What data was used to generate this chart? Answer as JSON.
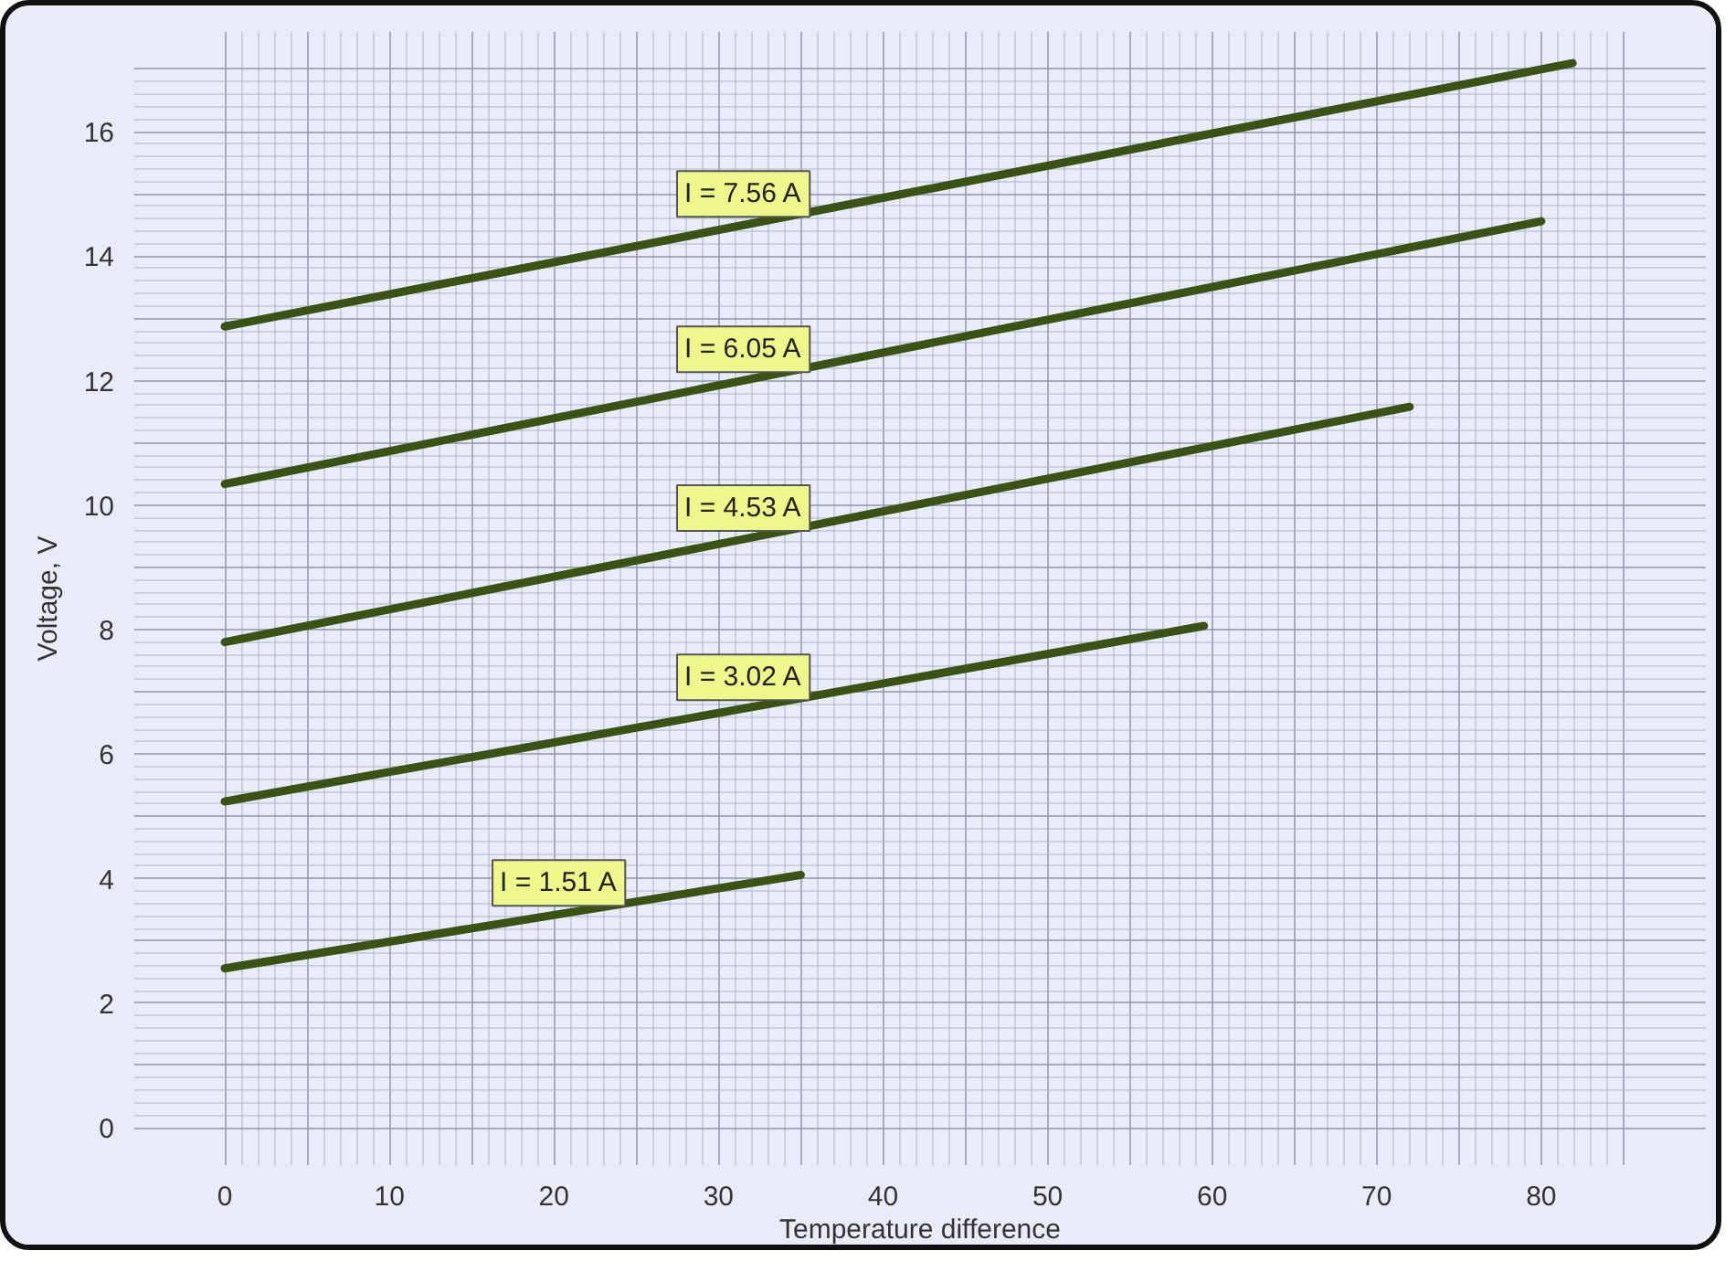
{
  "chart_data": {
    "type": "line",
    "xlabel": "Temperature difference",
    "ylabel": "Voltage, V",
    "xlim": [
      -5.5,
      90
    ],
    "ylim": [
      -0.6,
      17.6
    ],
    "xticks": [
      0,
      {
        "value": 5,
        "label": null
      },
      10,
      {
        "value": 15,
        "label": null
      },
      20,
      {
        "value": 25,
        "label": null
      },
      30,
      {
        "value": 35,
        "label": null
      },
      40,
      {
        "value": 45,
        "label": null
      },
      50,
      {
        "value": 55,
        "label": null
      },
      60,
      {
        "value": 65,
        "label": null
      },
      70,
      {
        "value": 75,
        "label": null
      },
      80,
      {
        "value": 85,
        "label": null
      }
    ],
    "yticks": [
      0,
      {
        "value": 1,
        "label": null
      },
      2,
      {
        "value": 3,
        "label": null
      },
      4,
      {
        "value": 5,
        "label": null
      },
      6,
      {
        "value": 7,
        "label": null
      },
      8,
      {
        "value": 9,
        "label": null
      },
      10,
      {
        "value": 11,
        "label": null
      },
      12,
      {
        "value": 13,
        "label": null
      },
      14,
      {
        "value": 15,
        "label": null
      },
      16,
      {
        "value": 17,
        "label": null
      }
    ],
    "grid": true,
    "marker": "none",
    "line_style": "solid",
    "series": [
      {
        "name": "I = 7.56 A",
        "color": "#3a5214",
        "x": [
          0,
          81.9
        ],
        "values": [
          12.87,
          17.1
        ]
      },
      {
        "name": "I = 6.05 A",
        "color": "#3a5214",
        "x": [
          0,
          80.0
        ],
        "values": [
          10.34,
          14.56
        ]
      },
      {
        "name": "I = 4.53 A",
        "color": "#3a5214",
        "x": [
          0,
          72.0
        ],
        "values": [
          7.8,
          11.58
        ]
      },
      {
        "name": "I = 3.02 A",
        "color": "#3a5214",
        "x": [
          0,
          59.5
        ],
        "values": [
          5.24,
          8.06
        ]
      },
      {
        "name": "I = 1.51 A",
        "color": "#3a5214",
        "x": [
          0,
          35.0
        ],
        "values": [
          2.56,
          4.06
        ]
      }
    ]
  }
}
